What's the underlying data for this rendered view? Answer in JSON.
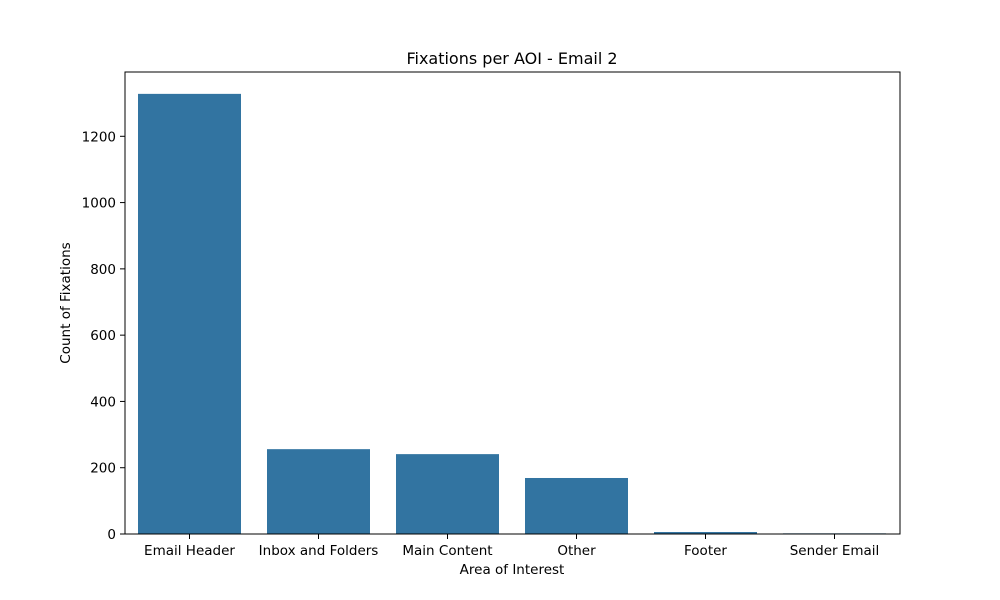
{
  "chart_data": {
    "type": "bar",
    "title": "Fixations per AOI - Email 2",
    "xlabel": "Area of Interest",
    "ylabel": "Count of Fixations",
    "categories": [
      "Email Header",
      "Inbox and Folders",
      "Main Content",
      "Other",
      "Footer",
      "Sender Email"
    ],
    "values": [
      1328,
      256,
      241,
      169,
      6,
      2
    ],
    "ylim": [
      0,
      1394
    ],
    "yticks": [
      0,
      200,
      400,
      600,
      800,
      1000,
      1200
    ],
    "ytick_labels": [
      "0",
      "200",
      "400",
      "600",
      "800",
      "1000",
      "1200"
    ],
    "bar_color": "#3274a1",
    "grid": false,
    "legend": "none"
  }
}
